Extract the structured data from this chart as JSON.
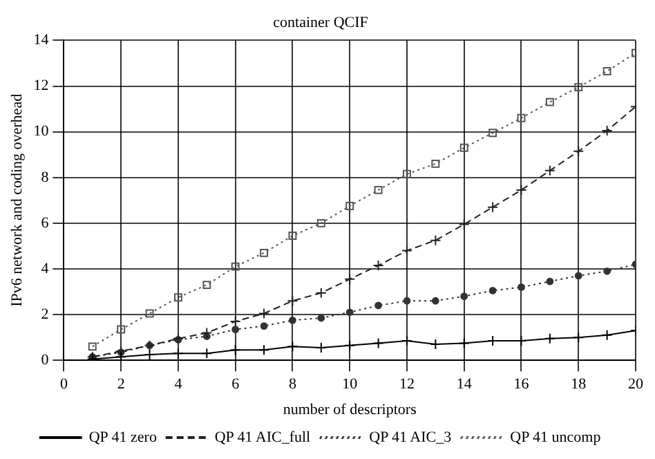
{
  "chart_data": {
    "type": "line",
    "title": "container QCIF",
    "xlabel": "number of descriptors",
    "ylabel": "IPv6 network and coding overhead",
    "x": [
      1,
      2,
      3,
      4,
      5,
      6,
      7,
      8,
      9,
      10,
      11,
      12,
      13,
      14,
      15,
      16,
      17,
      18,
      19,
      20
    ],
    "series": [
      {
        "name": "QP 41 zero",
        "color": "#000000",
        "marker": "cross",
        "line_style": "solid",
        "values": [
          0.05,
          0.15,
          0.25,
          0.3,
          0.3,
          0.45,
          0.45,
          0.6,
          0.55,
          0.65,
          0.75,
          0.85,
          0.7,
          0.75,
          0.85,
          0.85,
          0.95,
          1.0,
          1.1,
          1.3
        ]
      },
      {
        "name": "QP 41 AIC_full",
        "color": "#222222",
        "marker": "cross",
        "line_style": "dashed",
        "values": [
          0.15,
          0.4,
          0.65,
          0.95,
          1.2,
          1.7,
          2.05,
          2.6,
          2.95,
          3.55,
          4.15,
          4.8,
          5.25,
          5.95,
          6.7,
          7.45,
          8.3,
          9.15,
          10.05,
          11.1
        ]
      },
      {
        "name": "QP 41 AIC_3",
        "color": "#333333",
        "marker": "circle",
        "line_style": "dotted",
        "values": [
          0.15,
          0.35,
          0.65,
          0.9,
          1.05,
          1.35,
          1.5,
          1.75,
          1.85,
          2.1,
          2.4,
          2.6,
          2.6,
          2.8,
          3.05,
          3.2,
          3.45,
          3.7,
          3.9,
          4.2
        ]
      },
      {
        "name": "QP 41 uncomp",
        "color": "#555555",
        "marker": "square",
        "line_style": "dotted",
        "values": [
          0.6,
          1.35,
          2.05,
          2.75,
          3.3,
          4.1,
          4.7,
          5.45,
          6.0,
          6.75,
          7.45,
          8.15,
          8.6,
          9.3,
          9.95,
          10.6,
          11.3,
          11.95,
          12.65,
          13.45
        ]
      }
    ],
    "xlim": [
      0,
      20
    ],
    "xticks": [
      0,
      2,
      4,
      6,
      8,
      10,
      12,
      14,
      16,
      18,
      20
    ],
    "ylim": [
      0,
      14
    ],
    "yticks": [
      0,
      2,
      4,
      6,
      8,
      10,
      12,
      14
    ],
    "grid": true,
    "legend": "bottom"
  }
}
